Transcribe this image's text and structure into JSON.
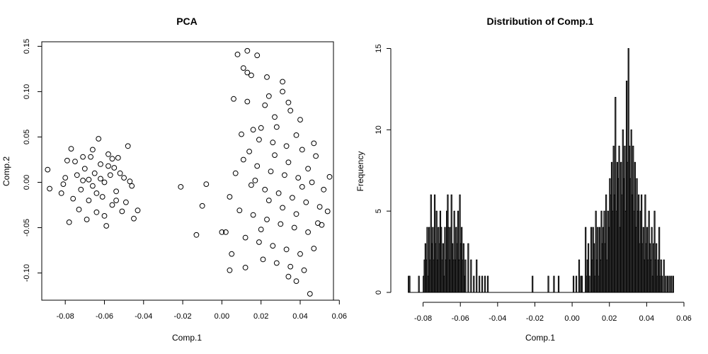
{
  "chart_data": [
    {
      "type": "scatter",
      "title": "PCA",
      "xlabel": "Comp.1",
      "ylabel": "Comp.2",
      "xlim": [
        -0.092,
        0.057
      ],
      "ylim": [
        -0.13,
        0.155
      ],
      "xticks": [
        -0.08,
        -0.06,
        -0.04,
        -0.02,
        0.0,
        0.02,
        0.04,
        0.06
      ],
      "xtick_labels": [
        "-0.08",
        "-0.06",
        "-0.04",
        "-0.02",
        "0.00",
        "0.02",
        "0.04",
        "0.06"
      ],
      "yticks": [
        -0.1,
        -0.05,
        0.0,
        0.05,
        0.1,
        0.15
      ],
      "ytick_labels": [
        "-0.10",
        "-0.05",
        "0.00",
        "0.05",
        "0.10",
        "0.15"
      ],
      "marker": "open-circle",
      "box": true,
      "grid": false,
      "points": [
        [
          -0.089,
          0.014
        ],
        [
          -0.088,
          -0.007
        ],
        [
          -0.078,
          -0.044
        ],
        [
          -0.077,
          0.037
        ],
        [
          -0.08,
          0.005
        ],
        [
          -0.082,
          -0.012
        ],
        [
          -0.075,
          0.023
        ],
        [
          -0.073,
          -0.03
        ],
        [
          -0.071,
          0.002
        ],
        [
          -0.07,
          0.015
        ],
        [
          -0.068,
          -0.02
        ],
        [
          -0.067,
          0.028
        ],
        [
          -0.066,
          -0.004
        ],
        [
          -0.065,
          0.01
        ],
        [
          -0.064,
          -0.033
        ],
        [
          -0.063,
          0.048
        ],
        [
          -0.062,
          0.02
        ],
        [
          -0.061,
          -0.016
        ],
        [
          -0.06,
          0.0
        ],
        [
          -0.059,
          -0.048
        ],
        [
          -0.058,
          0.031
        ],
        [
          -0.057,
          0.008
        ],
        [
          -0.056,
          -0.025
        ],
        [
          -0.055,
          0.016
        ],
        [
          -0.054,
          -0.01
        ],
        [
          -0.053,
          0.027
        ],
        [
          -0.052,
          0.01
        ],
        [
          -0.051,
          -0.032
        ],
        [
          -0.05,
          0.005
        ],
        [
          -0.049,
          -0.022
        ],
        [
          -0.048,
          0.04
        ],
        [
          -0.047,
          0.001
        ],
        [
          -0.046,
          -0.004
        ],
        [
          -0.045,
          -0.04
        ],
        [
          -0.043,
          -0.031
        ],
        [
          -0.076,
          -0.018
        ],
        [
          -0.074,
          0.008
        ],
        [
          -0.072,
          -0.008
        ],
        [
          -0.069,
          -0.041
        ],
        [
          -0.079,
          0.024
        ],
        [
          -0.081,
          -0.002
        ],
        [
          -0.066,
          0.036
        ],
        [
          -0.064,
          -0.012
        ],
        [
          -0.062,
          0.004
        ],
        [
          -0.06,
          -0.037
        ],
        [
          -0.058,
          0.018
        ],
        [
          -0.056,
          0.026
        ],
        [
          -0.054,
          -0.02
        ],
        [
          -0.071,
          0.028
        ],
        [
          -0.068,
          0.003
        ],
        [
          -0.021,
          -0.005
        ],
        [
          -0.013,
          -0.058
        ],
        [
          -0.01,
          -0.026
        ],
        [
          -0.008,
          -0.002
        ],
        [
          0.0,
          -0.055
        ],
        [
          0.002,
          -0.055
        ],
        [
          0.004,
          -0.097
        ],
        [
          0.005,
          -0.079
        ],
        [
          0.004,
          -0.016
        ],
        [
          0.008,
          0.141
        ],
        [
          0.013,
          0.145
        ],
        [
          0.018,
          0.14
        ],
        [
          0.011,
          0.126
        ],
        [
          0.013,
          0.121
        ],
        [
          0.015,
          0.118
        ],
        [
          0.023,
          0.116
        ],
        [
          0.031,
          0.111
        ],
        [
          0.006,
          0.092
        ],
        [
          0.013,
          0.089
        ],
        [
          0.022,
          0.085
        ],
        [
          0.035,
          0.079
        ],
        [
          0.04,
          0.069
        ],
        [
          0.028,
          0.061
        ],
        [
          0.016,
          0.058
        ],
        [
          0.01,
          0.053
        ],
        [
          0.019,
          0.047
        ],
        [
          0.026,
          0.044
        ],
        [
          0.033,
          0.04
        ],
        [
          0.041,
          0.036
        ],
        [
          0.048,
          0.029
        ],
        [
          0.011,
          0.025
        ],
        [
          0.018,
          0.018
        ],
        [
          0.025,
          0.012
        ],
        [
          0.032,
          0.008
        ],
        [
          0.039,
          0.005
        ],
        [
          0.046,
          0.0
        ],
        [
          0.015,
          -0.003
        ],
        [
          0.022,
          -0.008
        ],
        [
          0.029,
          -0.012
        ],
        [
          0.036,
          -0.017
        ],
        [
          0.043,
          -0.022
        ],
        [
          0.05,
          -0.027
        ],
        [
          0.009,
          -0.031
        ],
        [
          0.016,
          -0.036
        ],
        [
          0.023,
          -0.041
        ],
        [
          0.03,
          -0.046
        ],
        [
          0.037,
          -0.05
        ],
        [
          0.044,
          -0.055
        ],
        [
          0.051,
          -0.047
        ],
        [
          0.012,
          -0.061
        ],
        [
          0.019,
          -0.066
        ],
        [
          0.026,
          -0.07
        ],
        [
          0.033,
          -0.074
        ],
        [
          0.04,
          -0.079
        ],
        [
          0.047,
          -0.073
        ],
        [
          0.021,
          -0.085
        ],
        [
          0.028,
          -0.089
        ],
        [
          0.035,
          -0.093
        ],
        [
          0.042,
          -0.097
        ],
        [
          0.045,
          -0.123
        ],
        [
          0.034,
          -0.104
        ],
        [
          0.038,
          -0.109
        ],
        [
          0.012,
          -0.094
        ],
        [
          0.054,
          -0.032
        ],
        [
          0.049,
          -0.045
        ],
        [
          0.055,
          0.006
        ],
        [
          0.052,
          -0.008
        ],
        [
          0.02,
          0.06
        ],
        [
          0.027,
          0.072
        ],
        [
          0.031,
          0.1
        ],
        [
          0.024,
          0.095
        ],
        [
          0.034,
          0.088
        ],
        [
          0.038,
          0.052
        ],
        [
          0.044,
          0.015
        ],
        [
          0.017,
          0.002
        ],
        [
          0.024,
          -0.02
        ],
        [
          0.031,
          -0.028
        ],
        [
          0.038,
          -0.035
        ],
        [
          0.027,
          0.03
        ],
        [
          0.034,
          0.022
        ],
        [
          0.041,
          -0.005
        ],
        [
          0.02,
          -0.052
        ],
        [
          0.014,
          0.034
        ],
        [
          0.007,
          0.01
        ],
        [
          0.047,
          0.043
        ]
      ]
    },
    {
      "type": "bar",
      "title": "Distribution of Comp.1",
      "xlabel": "Comp.1",
      "ylabel": "Frequency",
      "xlim": [
        -0.092,
        0.06
      ],
      "ylim": [
        0,
        15.5
      ],
      "xticks": [
        -0.08,
        -0.06,
        -0.04,
        -0.02,
        0.0,
        0.02,
        0.04,
        0.06
      ],
      "xtick_labels": [
        "-0.08",
        "-0.06",
        "-0.04",
        "-0.02",
        "0.00",
        "0.02",
        "0.04",
        "0.06"
      ],
      "yticks": [
        0,
        5,
        10,
        15
      ],
      "ytick_labels": [
        "0",
        "5",
        "10",
        "15"
      ],
      "bin_width": 0.0005,
      "bins": [
        [
          -0.088,
          1
        ],
        [
          -0.0875,
          1
        ],
        [
          -0.0825,
          1
        ],
        [
          -0.08,
          1
        ],
        [
          -0.0795,
          2
        ],
        [
          -0.079,
          3
        ],
        [
          -0.0785,
          2
        ],
        [
          -0.078,
          4
        ],
        [
          -0.0775,
          1
        ],
        [
          -0.077,
          4
        ],
        [
          -0.0765,
          2
        ],
        [
          -0.076,
          6
        ],
        [
          -0.0755,
          3
        ],
        [
          -0.075,
          4
        ],
        [
          -0.0745,
          2
        ],
        [
          -0.074,
          6
        ],
        [
          -0.0735,
          3
        ],
        [
          -0.073,
          5
        ],
        [
          -0.0725,
          2
        ],
        [
          -0.072,
          4
        ],
        [
          -0.0715,
          3
        ],
        [
          -0.071,
          5
        ],
        [
          -0.0705,
          4
        ],
        [
          -0.07,
          2
        ],
        [
          -0.0695,
          3
        ],
        [
          -0.069,
          1
        ],
        [
          -0.0685,
          4
        ],
        [
          -0.068,
          2
        ],
        [
          -0.0675,
          5
        ],
        [
          -0.067,
          6
        ],
        [
          -0.0665,
          4
        ],
        [
          -0.066,
          2
        ],
        [
          -0.0655,
          4
        ],
        [
          -0.065,
          6
        ],
        [
          -0.0645,
          3
        ],
        [
          -0.064,
          2
        ],
        [
          -0.0635,
          5
        ],
        [
          -0.063,
          2
        ],
        [
          -0.0625,
          4
        ],
        [
          -0.062,
          3
        ],
        [
          -0.0615,
          5
        ],
        [
          -0.061,
          2
        ],
        [
          -0.0605,
          6
        ],
        [
          -0.06,
          3
        ],
        [
          -0.0595,
          4
        ],
        [
          -0.059,
          2
        ],
        [
          -0.0585,
          3
        ],
        [
          -0.058,
          1
        ],
        [
          -0.0575,
          2
        ],
        [
          -0.056,
          3
        ],
        [
          -0.0545,
          2
        ],
        [
          -0.053,
          1
        ],
        [
          -0.0515,
          2
        ],
        [
          -0.05,
          1
        ],
        [
          -0.0485,
          1
        ],
        [
          -0.047,
          1
        ],
        [
          -0.0455,
          1
        ],
        [
          -0.0215,
          1
        ],
        [
          -0.013,
          1
        ],
        [
          -0.01,
          1
        ],
        [
          -0.0075,
          1
        ],
        [
          0.0005,
          1
        ],
        [
          0.002,
          1
        ],
        [
          0.0035,
          2
        ],
        [
          0.0045,
          1
        ],
        [
          0.005,
          1
        ],
        [
          0.007,
          4
        ],
        [
          0.0075,
          1
        ],
        [
          0.008,
          2
        ],
        [
          0.0085,
          3
        ],
        [
          0.009,
          1
        ],
        [
          0.01,
          4
        ],
        [
          0.0105,
          2
        ],
        [
          0.011,
          4
        ],
        [
          0.0115,
          3
        ],
        [
          0.012,
          1
        ],
        [
          0.0125,
          5
        ],
        [
          0.013,
          2
        ],
        [
          0.0135,
          4
        ],
        [
          0.014,
          1
        ],
        [
          0.0145,
          4
        ],
        [
          0.015,
          2
        ],
        [
          0.0155,
          5
        ],
        [
          0.016,
          3
        ],
        [
          0.0165,
          4
        ],
        [
          0.017,
          5
        ],
        [
          0.0175,
          3
        ],
        [
          0.018,
          6
        ],
        [
          0.0185,
          2
        ],
        [
          0.019,
          5
        ],
        [
          0.0195,
          4
        ],
        [
          0.02,
          7
        ],
        [
          0.0205,
          6
        ],
        [
          0.021,
          8
        ],
        [
          0.0215,
          5
        ],
        [
          0.022,
          9
        ],
        [
          0.0225,
          6
        ],
        [
          0.023,
          12
        ],
        [
          0.0235,
          5
        ],
        [
          0.024,
          8
        ],
        [
          0.0245,
          7
        ],
        [
          0.025,
          9
        ],
        [
          0.0255,
          4
        ],
        [
          0.026,
          8
        ],
        [
          0.0265,
          6
        ],
        [
          0.027,
          10
        ],
        [
          0.0275,
          7
        ],
        [
          0.028,
          9
        ],
        [
          0.0285,
          5
        ],
        [
          0.029,
          13
        ],
        [
          0.0295,
          8
        ],
        [
          0.03,
          15
        ],
        [
          0.0305,
          9
        ],
        [
          0.031,
          7
        ],
        [
          0.0315,
          10
        ],
        [
          0.032,
          6
        ],
        [
          0.0325,
          9
        ],
        [
          0.033,
          5
        ],
        [
          0.0335,
          8
        ],
        [
          0.034,
          4
        ],
        [
          0.0345,
          7
        ],
        [
          0.035,
          5
        ],
        [
          0.0355,
          6
        ],
        [
          0.036,
          3
        ],
        [
          0.0365,
          5
        ],
        [
          0.037,
          6
        ],
        [
          0.0375,
          3
        ],
        [
          0.038,
          4
        ],
        [
          0.0385,
          2
        ],
        [
          0.039,
          6
        ],
        [
          0.0395,
          3
        ],
        [
          0.04,
          4
        ],
        [
          0.0405,
          2
        ],
        [
          0.041,
          5
        ],
        [
          0.0415,
          3
        ],
        [
          0.042,
          2
        ],
        [
          0.0425,
          4
        ],
        [
          0.043,
          1
        ],
        [
          0.0435,
          3
        ],
        [
          0.044,
          5
        ],
        [
          0.0445,
          2
        ],
        [
          0.045,
          3
        ],
        [
          0.0455,
          1
        ],
        [
          0.046,
          2
        ],
        [
          0.0465,
          4
        ],
        [
          0.047,
          1
        ],
        [
          0.0475,
          2
        ],
        [
          0.048,
          1
        ],
        [
          0.049,
          2
        ],
        [
          0.05,
          1
        ],
        [
          0.051,
          1
        ],
        [
          0.052,
          1
        ],
        [
          0.053,
          1
        ],
        [
          0.054,
          1
        ]
      ]
    }
  ]
}
